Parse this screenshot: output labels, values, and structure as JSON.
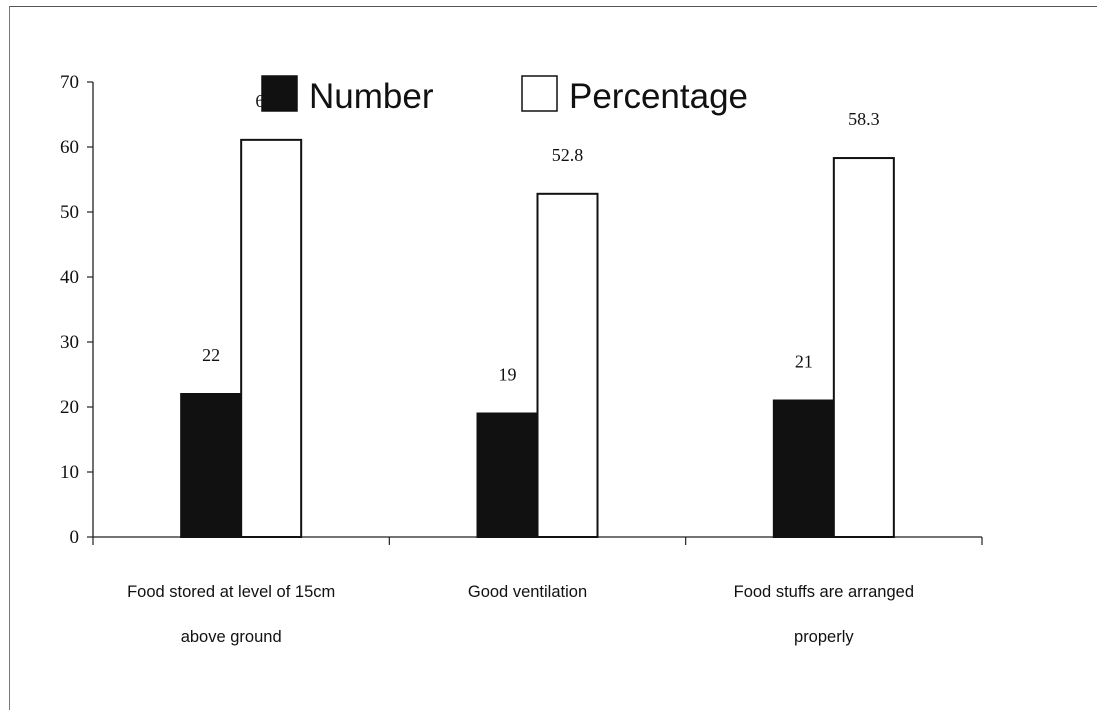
{
  "chart_data": {
    "type": "bar",
    "title": "",
    "xlabel": "",
    "ylabel": "",
    "ylim": [
      0,
      70
    ],
    "yticks": [
      0,
      10,
      20,
      30,
      40,
      50,
      60,
      70
    ],
    "grid": false,
    "legend_position": "top",
    "categories": [
      [
        "Food stored at level of 15cm",
        "above ground"
      ],
      [
        "Good ventilation"
      ],
      [
        "Food stuffs are arranged",
        "properly"
      ]
    ],
    "series": [
      {
        "name": "Number",
        "color": "#111111",
        "values": [
          22,
          19,
          21
        ],
        "labels": [
          "22",
          "19",
          "21"
        ]
      },
      {
        "name": "Percentage",
        "color": "#ffffff",
        "values": [
          61.1,
          52.8,
          58.3
        ],
        "labels": [
          "61.1",
          "52.8",
          "58.3"
        ]
      }
    ]
  }
}
